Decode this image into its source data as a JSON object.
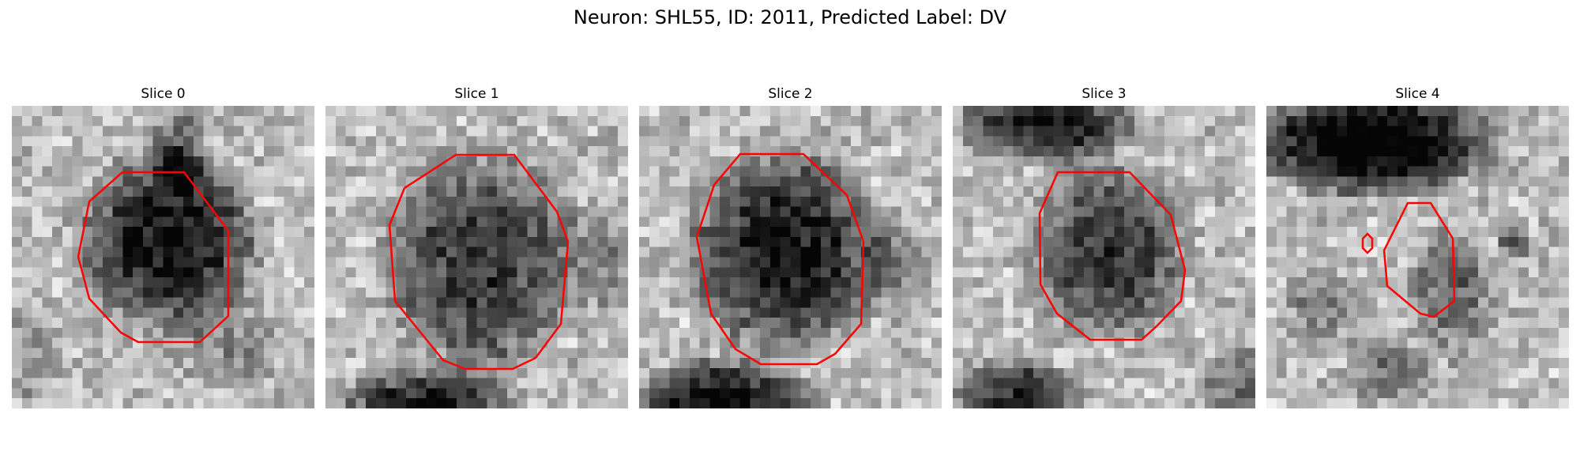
{
  "figure": {
    "title": "Neuron: SHL55, ID: 2011, Predicted Label: DV",
    "outline_color": "#ff0000",
    "colormap": "gray",
    "panels": [
      {
        "title": "Slice 0",
        "has_outline": true,
        "outline_count": 1
      },
      {
        "title": "Slice 1",
        "has_outline": true,
        "outline_count": 1
      },
      {
        "title": "Slice 2",
        "has_outline": true,
        "outline_count": 1
      },
      {
        "title": "Slice 3",
        "has_outline": true,
        "outline_count": 1
      },
      {
        "title": "Slice 4",
        "has_outline": true,
        "outline_count": 2
      }
    ]
  }
}
